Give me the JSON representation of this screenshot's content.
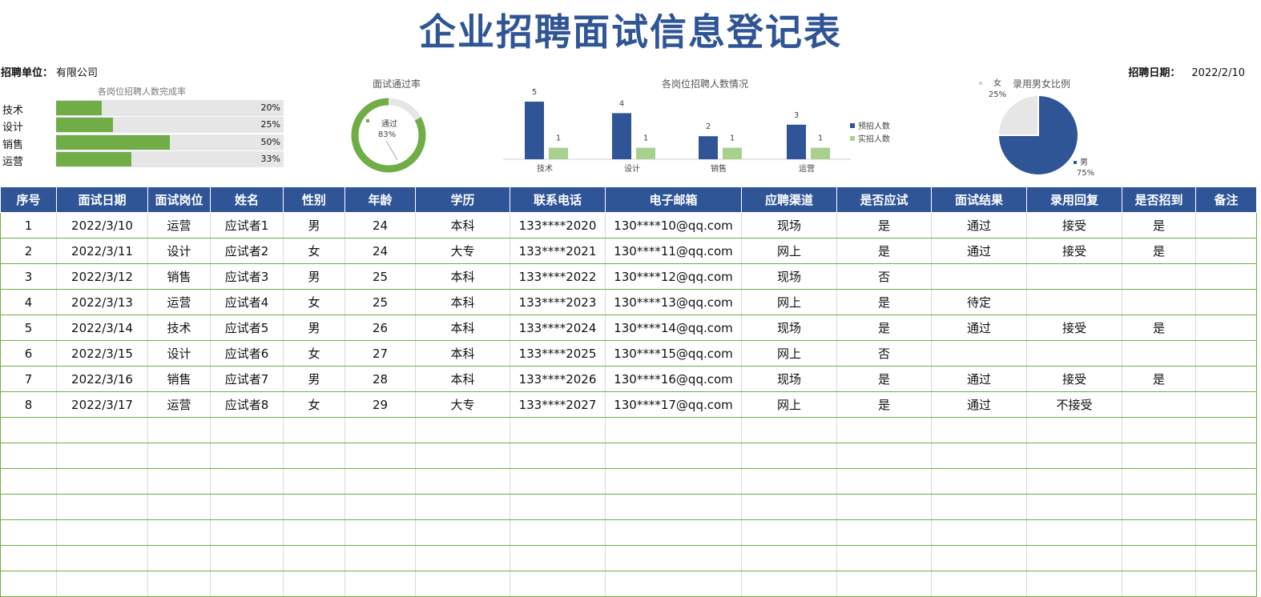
{
  "title": "企业招聘面试信息登记表",
  "unit": {
    "label": "招聘单位：",
    "value": "有限公司"
  },
  "date": {
    "label": "招聘日期：",
    "value": "2022/2/10"
  },
  "colors": {
    "primary": "#2f5597",
    "green": "#70ad47",
    "light_green": "#a9d18e",
    "track": "#e6e6e6"
  },
  "chart_data": [
    {
      "type": "bar",
      "title": "各岗位招聘人数完成率",
      "categories": [
        "技术",
        "设计",
        "销售",
        "运营"
      ],
      "values": [
        20,
        25,
        50,
        33
      ],
      "value_labels": [
        "20%",
        "25%",
        "50%",
        "33%"
      ],
      "xlim": [
        0,
        100
      ]
    },
    {
      "type": "pie",
      "title": "面试通过率",
      "labels": [
        "通过",
        ""
      ],
      "values": [
        83,
        17
      ],
      "value_labels": [
        "83%",
        ""
      ]
    },
    {
      "type": "bar",
      "title": "各岗位招聘人数情况",
      "categories": [
        "技术",
        "设计",
        "销售",
        "运营"
      ],
      "series": [
        {
          "name": "预招人数",
          "values": [
            5,
            4,
            2,
            3
          ]
        },
        {
          "name": "实招人数",
          "values": [
            1,
            1,
            1,
            1
          ]
        }
      ],
      "ylim": [
        0,
        5
      ]
    },
    {
      "type": "pie",
      "title": "录用男女比例",
      "labels": [
        "男",
        "女"
      ],
      "values": [
        75,
        25
      ],
      "value_labels": [
        "75%",
        "25%"
      ]
    }
  ],
  "table": {
    "headers": [
      "序号",
      "面试日期",
      "面试岗位",
      "姓名",
      "性别",
      "年龄",
      "学历",
      "联系电话",
      "电子邮箱",
      "应聘渠道",
      "是否应试",
      "面试结果",
      "录用回复",
      "是否招到",
      "备注"
    ],
    "rows": [
      [
        "1",
        "2022/3/10",
        "运营",
        "应试者1",
        "男",
        "24",
        "本科",
        "133****2020",
        "130****10@qq.com",
        "现场",
        "是",
        "通过",
        "接受",
        "是",
        ""
      ],
      [
        "2",
        "2022/3/11",
        "设计",
        "应试者2",
        "女",
        "24",
        "大专",
        "133****2021",
        "130****11@qq.com",
        "网上",
        "是",
        "通过",
        "接受",
        "是",
        ""
      ],
      [
        "3",
        "2022/3/12",
        "销售",
        "应试者3",
        "男",
        "25",
        "本科",
        "133****2022",
        "130****12@qq.com",
        "现场",
        "否",
        "",
        "",
        "",
        ""
      ],
      [
        "4",
        "2022/3/13",
        "运营",
        "应试者4",
        "女",
        "25",
        "本科",
        "133****2023",
        "130****13@qq.com",
        "网上",
        "是",
        "待定",
        "",
        "",
        ""
      ],
      [
        "5",
        "2022/3/14",
        "技术",
        "应试者5",
        "男",
        "26",
        "本科",
        "133****2024",
        "130****14@qq.com",
        "现场",
        "是",
        "通过",
        "接受",
        "是",
        ""
      ],
      [
        "6",
        "2022/3/15",
        "设计",
        "应试者6",
        "女",
        "27",
        "本科",
        "133****2025",
        "130****15@qq.com",
        "网上",
        "否",
        "",
        "",
        "",
        ""
      ],
      [
        "7",
        "2022/3/16",
        "销售",
        "应试者7",
        "男",
        "28",
        "本科",
        "133****2026",
        "130****16@qq.com",
        "现场",
        "是",
        "通过",
        "接受",
        "是",
        ""
      ],
      [
        "8",
        "2022/3/17",
        "运营",
        "应试者8",
        "女",
        "29",
        "大专",
        "133****2027",
        "130****17@qq.com",
        "网上",
        "是",
        "通过",
        "不接受",
        "",
        ""
      ]
    ],
    "empty_rows": 7
  }
}
